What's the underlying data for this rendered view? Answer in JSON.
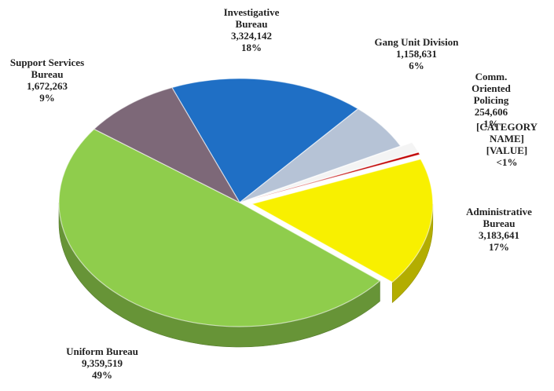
{
  "chart_data": {
    "type": "pie3d",
    "categories": [
      "Investigative\nBureau",
      "Gang Unit Division",
      "Comm. Oriented\nPolicing",
      "[CATEGORY\nNAME]",
      "Administrative\nBureau",
      "Uniform Bureau",
      "Support Services\nBureau"
    ],
    "values": [
      3324142,
      1158631,
      254606,
      60000,
      3183641,
      9359519,
      1672263
    ],
    "value_labels": [
      "3,324,142",
      "1,158,631",
      "254,606",
      "[VALUE]",
      "3,183,641",
      "9,359,519",
      "1,672,263"
    ],
    "percent_labels": [
      "18%",
      "6%",
      "1%",
      "<1%",
      "17%",
      "49%",
      "9%"
    ],
    "colors": [
      "#1f6fc5",
      "#b6c3d6",
      "#f4f4f4",
      "#c00000",
      "#f8f000",
      "#8fcd4c",
      "#7d6878"
    ],
    "exploded": [
      false,
      false,
      true,
      true,
      true,
      false,
      false
    ]
  }
}
